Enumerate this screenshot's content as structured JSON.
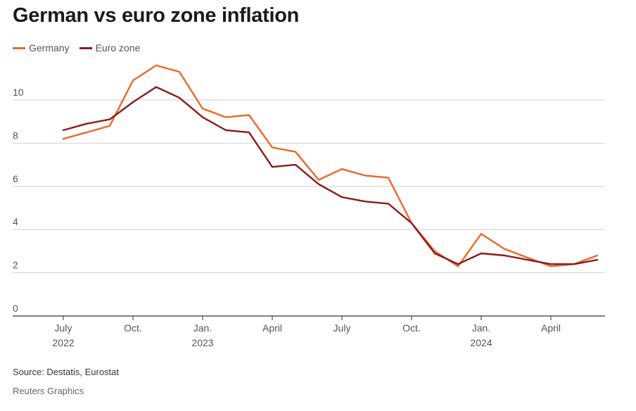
{
  "title": "German vs euro zone inflation",
  "footer": {
    "source": "Source: Destatis, Eurostat",
    "credit": "Reuters Graphics"
  },
  "chart_data": {
    "type": "line",
    "title": "German vs euro zone inflation",
    "xlabel": "",
    "ylabel": "",
    "ylim": [
      0,
      10
    ],
    "yticks": [
      0,
      2,
      4,
      6,
      8,
      10
    ],
    "grid": true,
    "legend_position": "top-left",
    "x": [
      "Jul 2022",
      "Aug 2022",
      "Sep 2022",
      "Oct 2022",
      "Nov 2022",
      "Dec 2022",
      "Jan 2023",
      "Feb 2023",
      "Mar 2023",
      "Apr 2023",
      "May 2023",
      "Jun 2023",
      "Jul 2023",
      "Aug 2023",
      "Sep 2023",
      "Oct 2023",
      "Nov 2023",
      "Dec 2023",
      "Jan 2024",
      "Feb 2024",
      "Mar 2024",
      "Apr 2024",
      "May 2024",
      "Jun 2024"
    ],
    "xtick_labels": [
      {
        "index": 0,
        "line1": "July",
        "line2": "2022"
      },
      {
        "index": 3,
        "line1": "Oct.",
        "line2": ""
      },
      {
        "index": 6,
        "line1": "Jan.",
        "line2": "2023"
      },
      {
        "index": 9,
        "line1": "April",
        "line2": ""
      },
      {
        "index": 12,
        "line1": "July",
        "line2": ""
      },
      {
        "index": 15,
        "line1": "Oct.",
        "line2": ""
      },
      {
        "index": 18,
        "line1": "Jan.",
        "line2": "2024"
      },
      {
        "index": 21,
        "line1": "April",
        "line2": ""
      }
    ],
    "series": [
      {
        "name": "Germany",
        "color": "#e8692a",
        "values": [
          8.2,
          8.5,
          8.8,
          10.9,
          11.6,
          11.3,
          9.6,
          9.2,
          9.3,
          7.8,
          7.6,
          6.3,
          6.8,
          6.5,
          6.4,
          4.3,
          3.0,
          2.3,
          3.8,
          3.1,
          2.7,
          2.3,
          2.4,
          2.8
        ]
      },
      {
        "name": "Euro zone",
        "color": "#8b1a1a",
        "values": [
          8.6,
          8.9,
          9.1,
          9.9,
          10.6,
          10.1,
          9.2,
          8.6,
          8.5,
          6.9,
          7.0,
          6.1,
          5.5,
          5.3,
          5.2,
          4.3,
          2.9,
          2.4,
          2.9,
          2.8,
          2.6,
          2.4,
          2.4,
          2.6
        ]
      }
    ]
  }
}
